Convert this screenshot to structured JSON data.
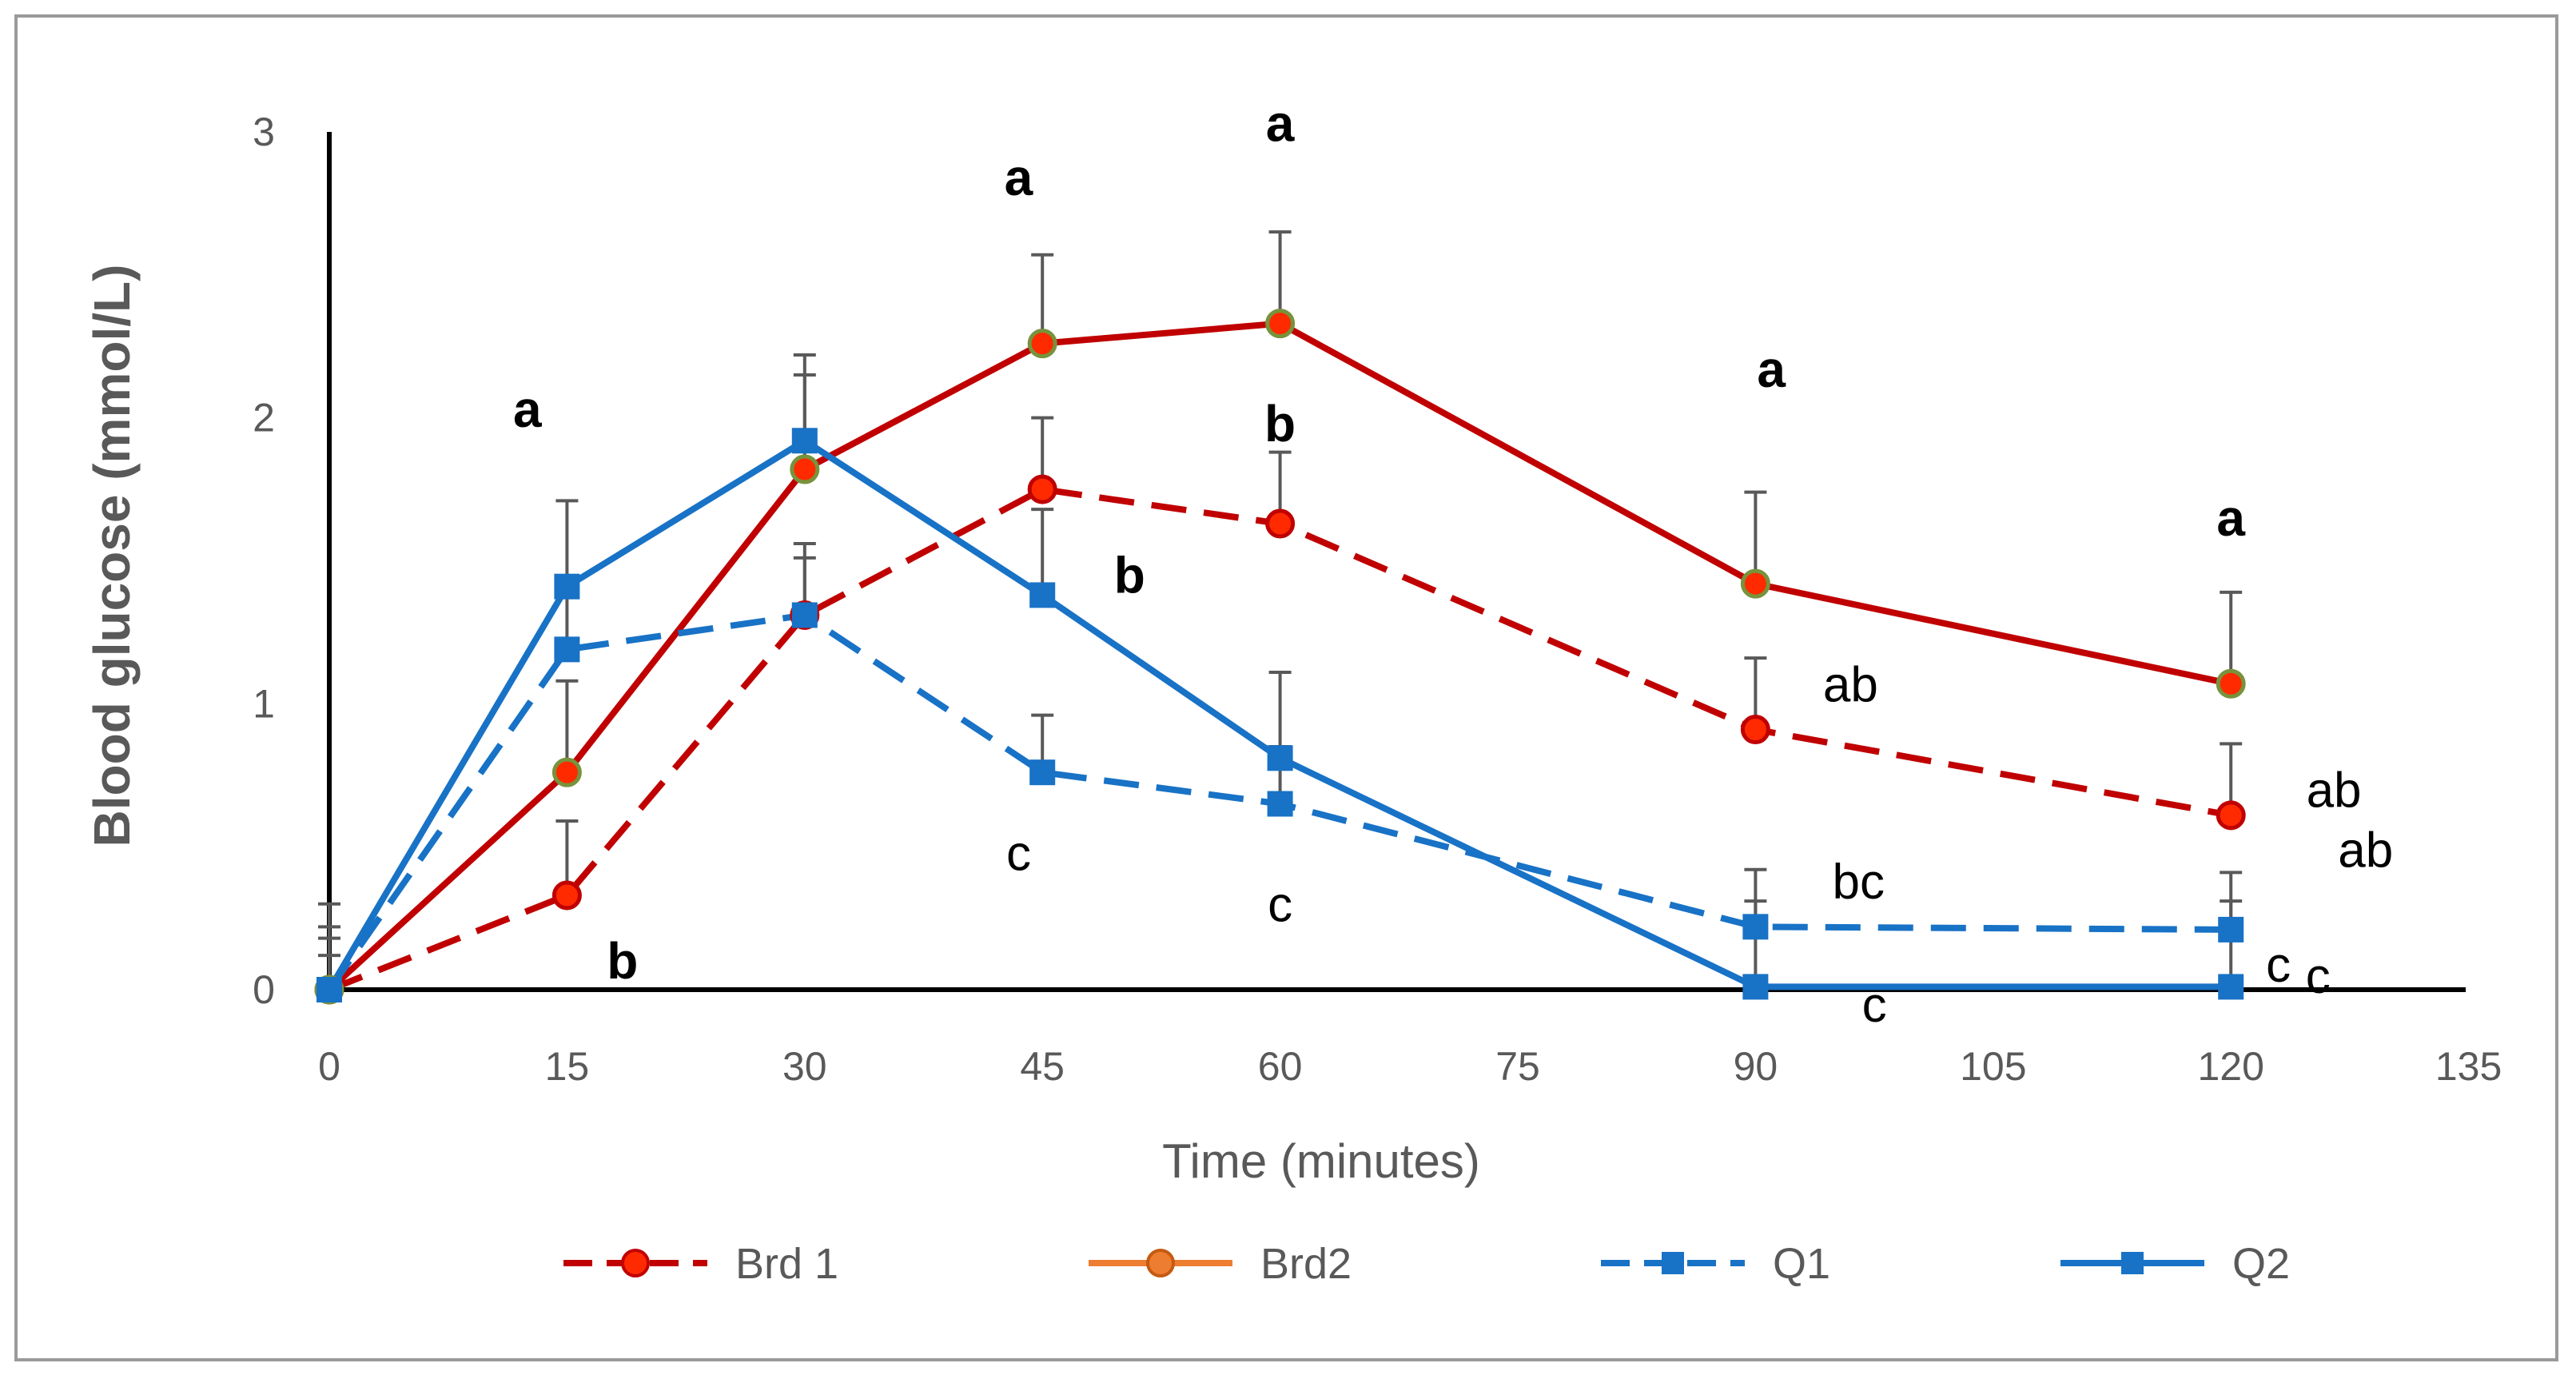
{
  "chart_data": {
    "type": "line",
    "xlabel": "Time (minutes)",
    "ylabel": "Blood glucose (mmol/L)",
    "xlim": [
      0,
      135
    ],
    "ylim": [
      0,
      3
    ],
    "x_ticks": [
      "0",
      "15",
      "30",
      "45",
      "60",
      "75",
      "90",
      "105",
      "120",
      "135"
    ],
    "y_ticks": [
      "0",
      "1",
      "2",
      "3"
    ],
    "grid": false,
    "legend_position": "bottom",
    "series": [
      {
        "name": "Brd 1",
        "color": "#c00000",
        "marker_fill": "#ff2a00",
        "marker": "circle",
        "dash": true,
        "x": [
          0,
          15,
          30,
          45,
          60,
          90,
          120
        ],
        "y": [
          0,
          0.33,
          1.31,
          1.75,
          1.63,
          0.91,
          0.61
        ],
        "err": [
          0.3,
          0.26,
          0.25,
          0.25,
          0.25,
          0.25,
          0.25
        ]
      },
      {
        "name": "Brd2",
        "color": "#c00000",
        "marker_fill": "#ff2a00",
        "marker": "circle",
        "dash": false,
        "x": [
          0,
          15,
          30,
          45,
          60,
          90,
          120
        ],
        "y": [
          0,
          0.76,
          1.82,
          2.26,
          2.33,
          1.42,
          1.07
        ],
        "err": [
          0.22,
          0.32,
          0.33,
          0.31,
          0.32,
          0.32,
          0.32
        ]
      },
      {
        "name": "Q1",
        "color": "#1872c6",
        "marker_fill": "#1872c6",
        "marker": "square",
        "dash": true,
        "x": [
          0,
          15,
          30,
          45,
          60,
          90,
          120
        ],
        "y": [
          0,
          1.19,
          1.31,
          0.76,
          0.65,
          0.22,
          0.21
        ],
        "err": [
          0.18,
          0.2,
          0.2,
          0.2,
          0.2,
          0.2,
          0.2
        ]
      },
      {
        "name": "Q2",
        "color": "#1872c6",
        "marker_fill": "#1872c6",
        "marker": "square",
        "dash": false,
        "x": [
          0,
          15,
          30,
          45,
          60,
          90,
          120
        ],
        "y": [
          0,
          1.41,
          1.92,
          1.38,
          0.81,
          0.01,
          0.01
        ],
        "err": [
          0.12,
          0.3,
          0.3,
          0.3,
          0.3,
          0.3,
          0.3
        ]
      }
    ],
    "annotations": [
      {
        "text": "a",
        "x": 12.5,
        "y": 2.03,
        "bold": true
      },
      {
        "text": "b",
        "x": 18.5,
        "y": 0.1,
        "bold": true
      },
      {
        "text": "a",
        "x": 43.5,
        "y": 2.84,
        "bold": true
      },
      {
        "text": "b",
        "x": 50.5,
        "y": 1.45,
        "bold": true
      },
      {
        "text": "c",
        "x": 43.5,
        "y": 0.48,
        "bold": false
      },
      {
        "text": "a",
        "x": 60.0,
        "y": 3.03,
        "bold": true
      },
      {
        "text": "b",
        "x": 60.0,
        "y": 1.98,
        "bold": true
      },
      {
        "text": "c",
        "x": 60.0,
        "y": 0.3,
        "bold": false
      },
      {
        "text": "a",
        "x": 91.0,
        "y": 2.17,
        "bold": true
      },
      {
        "text": "ab",
        "x": 96.0,
        "y": 1.07,
        "bold": false
      },
      {
        "text": "bc",
        "x": 96.5,
        "y": 0.38,
        "bold": false
      },
      {
        "text": "c",
        "x": 97.5,
        "y": -0.05,
        "bold": false
      },
      {
        "text": "a",
        "x": 120.0,
        "y": 1.65,
        "bold": true
      },
      {
        "text": "ab",
        "x": 126.5,
        "y": 0.7,
        "bold": false
      },
      {
        "text": "ab",
        "x": 128.5,
        "y": 0.49,
        "bold": false
      },
      {
        "text": "c",
        "x": 123.0,
        "y": 0.09,
        "bold": false
      },
      {
        "text": "c",
        "x": 125.5,
        "y": 0.05,
        "bold": false
      }
    ]
  }
}
